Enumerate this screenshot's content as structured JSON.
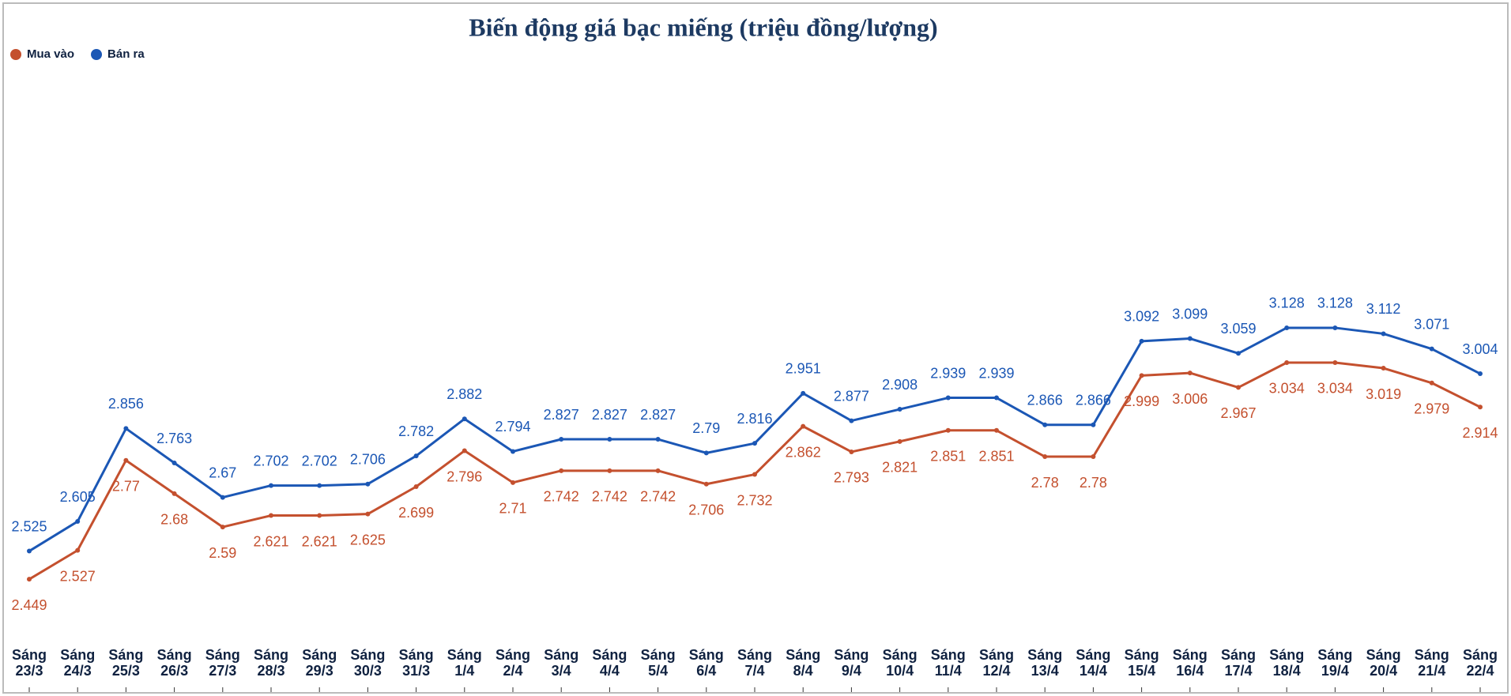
{
  "chart_data": {
    "type": "line",
    "title": "Biến động giá bạc miếng (triệu đồng/lượng)",
    "categories": [
      "Sáng 23/3",
      "Sáng 24/3",
      "Sáng 25/3",
      "Sáng 26/3",
      "Sáng 27/3",
      "Sáng 28/3",
      "Sáng 29/3",
      "Sáng 30/3",
      "Sáng 31/3",
      "Sáng 1/4",
      "Sáng 2/4",
      "Sáng 3/4",
      "Sáng 4/4",
      "Sáng 5/4",
      "Sáng 6/4",
      "Sáng 7/4",
      "Sáng 8/4",
      "Sáng 9/4",
      "Sáng 10/4",
      "Sáng 11/4",
      "Sáng 12/4",
      "Sáng 13/4",
      "Sáng 14/4",
      "Sáng 15/4",
      "Sáng 16/4",
      "Sáng 17/4",
      "Sáng 18/4",
      "Sáng 19/4",
      "Sáng 20/4",
      "Sáng 21/4",
      "Sáng 22/4"
    ],
    "series": [
      {
        "name": "Mua vào",
        "color": "#c4502e",
        "values": [
          2.449,
          2.527,
          2.77,
          2.68,
          2.59,
          2.621,
          2.621,
          2.625,
          2.699,
          2.796,
          2.71,
          2.742,
          2.742,
          2.742,
          2.706,
          2.732,
          2.862,
          2.793,
          2.821,
          2.851,
          2.851,
          2.78,
          2.78,
          2.999,
          3.006,
          2.967,
          3.034,
          3.034,
          3.019,
          2.979,
          2.914
        ]
      },
      {
        "name": "Bán ra",
        "color": "#1b57b5",
        "values": [
          2.525,
          2.605,
          2.856,
          2.763,
          2.67,
          2.702,
          2.702,
          2.706,
          2.782,
          2.882,
          2.794,
          2.827,
          2.827,
          2.827,
          2.79,
          2.816,
          2.951,
          2.877,
          2.908,
          2.939,
          2.939,
          2.866,
          2.866,
          3.092,
          3.099,
          3.059,
          3.128,
          3.128,
          3.112,
          3.071,
          3.004
        ]
      }
    ],
    "ylim": [
      2.3,
      3.8
    ],
    "legend": "top-left"
  }
}
